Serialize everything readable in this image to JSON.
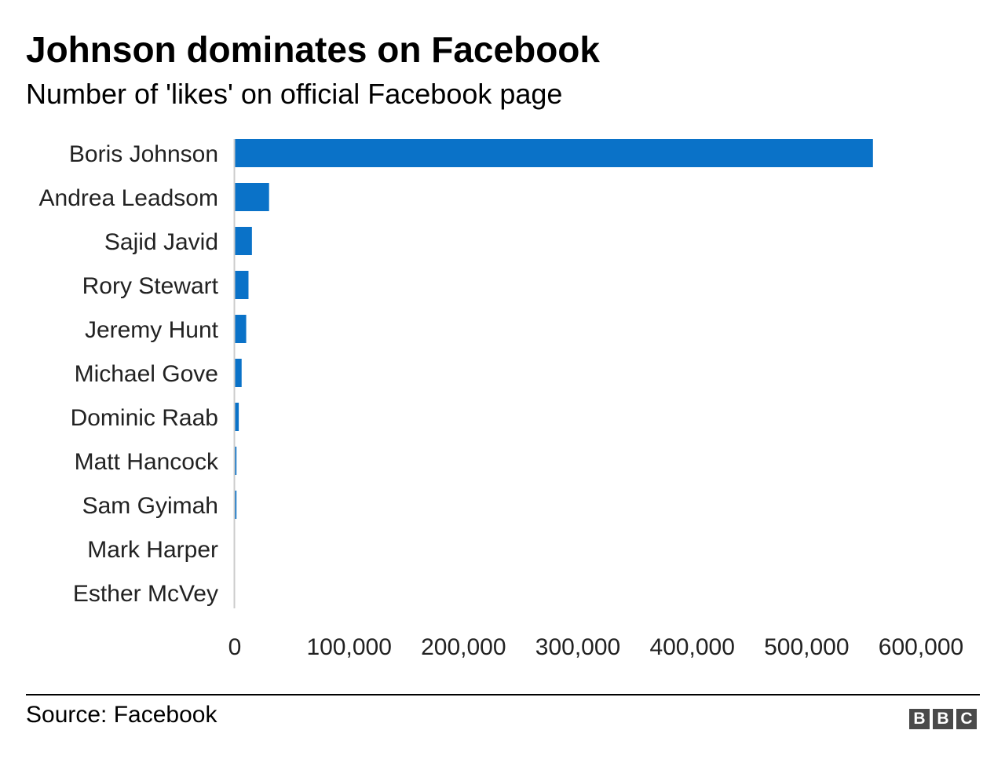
{
  "header": {
    "title": "Johnson dominates on Facebook",
    "subtitle": "Number of 'likes' on official Facebook page"
  },
  "footer": {
    "source": "Source: Facebook",
    "logo_letters": [
      "B",
      "B",
      "C"
    ]
  },
  "colors": {
    "bar": "#0a72c8",
    "axis": "#cccccc",
    "text": "#222222"
  },
  "chart_data": {
    "type": "bar",
    "orientation": "horizontal",
    "title": "Johnson dominates on Facebook",
    "subtitle": "Number of 'likes' on official Facebook page",
    "categories": [
      "Boris Johnson",
      "Andrea Leadsom",
      "Sajid Javid",
      "Rory Stewart",
      "Jeremy Hunt",
      "Michael Gove",
      "Dominic Raab",
      "Matt Hancock",
      "Sam Gyimah",
      "Mark Harper",
      "Esther McVey"
    ],
    "values": [
      558000,
      30000,
      15000,
      12000,
      10000,
      6000,
      3500,
      1500,
      1500,
      0,
      0
    ],
    "xlim": [
      0,
      600000
    ],
    "xticks": [
      0,
      100000,
      200000,
      300000,
      400000,
      500000,
      600000
    ],
    "xtick_labels": [
      "0",
      "100,000",
      "200,000",
      "300,000",
      "400,000",
      "500,000",
      "600,000"
    ],
    "xlabel": "",
    "ylabel": "",
    "grid": false,
    "legend": "none"
  }
}
